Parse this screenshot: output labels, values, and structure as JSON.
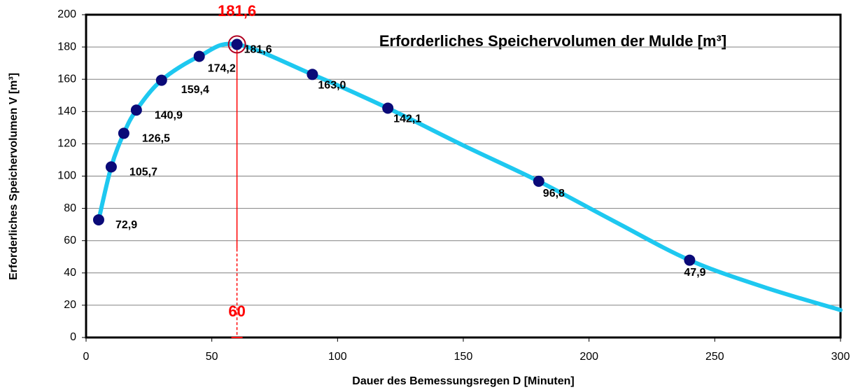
{
  "chart_data": {
    "type": "line",
    "title": "Erforderliches Speichervolumen der Mulde [m³]",
    "x_label": "Dauer des Bemessungsregen D [Minuten]",
    "y_label": "Erforderliches Speichervolumen V [m³]",
    "xlim": [
      0,
      300
    ],
    "xticks": [
      0,
      50,
      100,
      150,
      200,
      250,
      300
    ],
    "ylim": [
      0,
      200
    ],
    "yticks": [
      0,
      20,
      40,
      60,
      80,
      100,
      120,
      140,
      160,
      180,
      200
    ],
    "grid": true,
    "series": [
      {
        "color": "#1ec8f0",
        "smooth": true,
        "x": [
          5,
          10,
          15,
          20,
          30,
          45,
          60,
          90,
          120,
          150,
          180,
          210,
          240,
          270,
          300
        ],
        "values": [
          72.9,
          105.7,
          126.5,
          140.9,
          159.4,
          174.2,
          181.6,
          163.0,
          142.1,
          119,
          96.8,
          72,
          47.9,
          31,
          17
        ]
      },
      {
        "color": "#0a0a78",
        "markers": true,
        "x": [
          5,
          10,
          15,
          20,
          30,
          45,
          60,
          90,
          120,
          180,
          240
        ],
        "values": [
          72.9,
          105.7,
          126.5,
          140.9,
          159.4,
          174.2,
          181.6,
          163.0,
          142.1,
          96.8,
          47.9
        ],
        "value_labels": [
          "72,9",
          "105,7",
          "126,5",
          "140,9",
          "159,4",
          "174,2",
          "181,6",
          "163,0",
          "142,1",
          "96,8",
          "47,9"
        ]
      }
    ],
    "highlight": {
      "color": "#ff0000",
      "x": {
        "value": 60,
        "label": "60"
      },
      "y": {
        "value": 181.6,
        "label": "181,6"
      }
    }
  }
}
